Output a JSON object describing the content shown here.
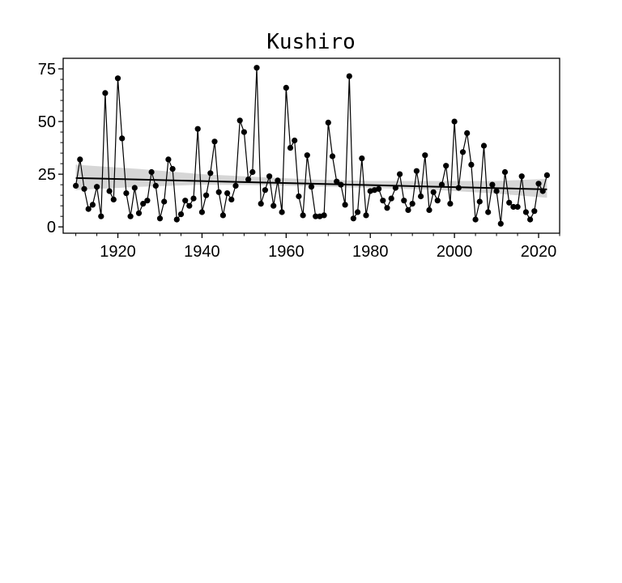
{
  "chart_data": {
    "type": "line",
    "title": "Kushiro",
    "xlabel": "",
    "ylabel": "",
    "xlim": [
      1907,
      2025
    ],
    "ylim": [
      -3,
      80
    ],
    "x_ticks": [
      1920,
      1940,
      1960,
      1980,
      2000,
      2020
    ],
    "y_ticks": [
      0,
      25,
      50,
      75
    ],
    "grid": false,
    "legend": "none",
    "colors": {
      "series": "#000000",
      "trend": "#000000",
      "ci_band": "#c8c8c8"
    },
    "series": [
      {
        "x": [
          1910,
          1911,
          1912,
          1913,
          1914,
          1915,
          1916,
          1917,
          1918,
          1919,
          1920,
          1921,
          1922,
          1923,
          1924,
          1925,
          1926,
          1927,
          1928,
          1929,
          1930,
          1931,
          1932,
          1933,
          1934,
          1935,
          1936,
          1937,
          1938,
          1939,
          1940,
          1941,
          1942,
          1943,
          1944,
          1945,
          1946,
          1947,
          1948,
          1949,
          1950,
          1951,
          1952,
          1953,
          1954,
          1955,
          1956,
          1957,
          1958,
          1959,
          1960,
          1961,
          1962,
          1963,
          1964,
          1965,
          1966,
          1967,
          1968,
          1969,
          1970,
          1971,
          1972,
          1973,
          1974,
          1975,
          1976,
          1977,
          1978,
          1979,
          1980,
          1981,
          1982,
          1983,
          1984,
          1985,
          1986,
          1987,
          1988,
          1989,
          1990,
          1991,
          1992,
          1993,
          1994,
          1995,
          1996,
          1997,
          1998,
          1999,
          2000,
          2001,
          2002,
          2003,
          2004,
          2005,
          2006,
          2007,
          2008,
          2009,
          2010,
          2011,
          2012,
          2013,
          2014,
          2015,
          2016,
          2017,
          2018,
          2019,
          2020,
          2021,
          2022
        ],
        "y": [
          19.5,
          32,
          18,
          8.5,
          10.5,
          19,
          5,
          63.5,
          17,
          13,
          70.5,
          42,
          16,
          5,
          18.5,
          6.5,
          11,
          12.5,
          26,
          19.5,
          4,
          12,
          32,
          27.5,
          3.5,
          6,
          12.5,
          10,
          13.5,
          46.5,
          7,
          15,
          25.5,
          40.5,
          16.5,
          5.5,
          16,
          13,
          19.5,
          50.5,
          45,
          22.5,
          26,
          75.5,
          11,
          17.5,
          24,
          10,
          22,
          7,
          66,
          37.5,
          41,
          14.5,
          5.5,
          34,
          19,
          5,
          5,
          5.5,
          49.5,
          33.5,
          21.5,
          20,
          10.5,
          71.5,
          4,
          7,
          32.5,
          5.5,
          17,
          17.5,
          18,
          12.5,
          9,
          13.5,
          18.5,
          25,
          12.5,
          8,
          11,
          26.5,
          14.5,
          34,
          8,
          16.5,
          12.5,
          20,
          29,
          11,
          50,
          18.5,
          35.5,
          44.5,
          29.5,
          3.5,
          12,
          38.5,
          7,
          20,
          17,
          1.5,
          26,
          11.5,
          9.5,
          9.5,
          24,
          7,
          3.5,
          7.5,
          20.5,
          17,
          24.5
        ]
      }
    ],
    "trend": {
      "x": [
        1910,
        2022
      ],
      "y": [
        23.2,
        17.8
      ]
    },
    "ci_band": {
      "x": [
        1910,
        1925,
        1940,
        1955,
        1966,
        1980,
        1995,
        2010,
        2022
      ],
      "lower": [
        17.5,
        19.0,
        20.0,
        19.8,
        19.3,
        18.5,
        17.6,
        15.8,
        13.8
      ],
      "upper": [
        29.5,
        27.5,
        25.0,
        23.5,
        22.5,
        21.8,
        21.8,
        21.8,
        22.8
      ]
    }
  }
}
